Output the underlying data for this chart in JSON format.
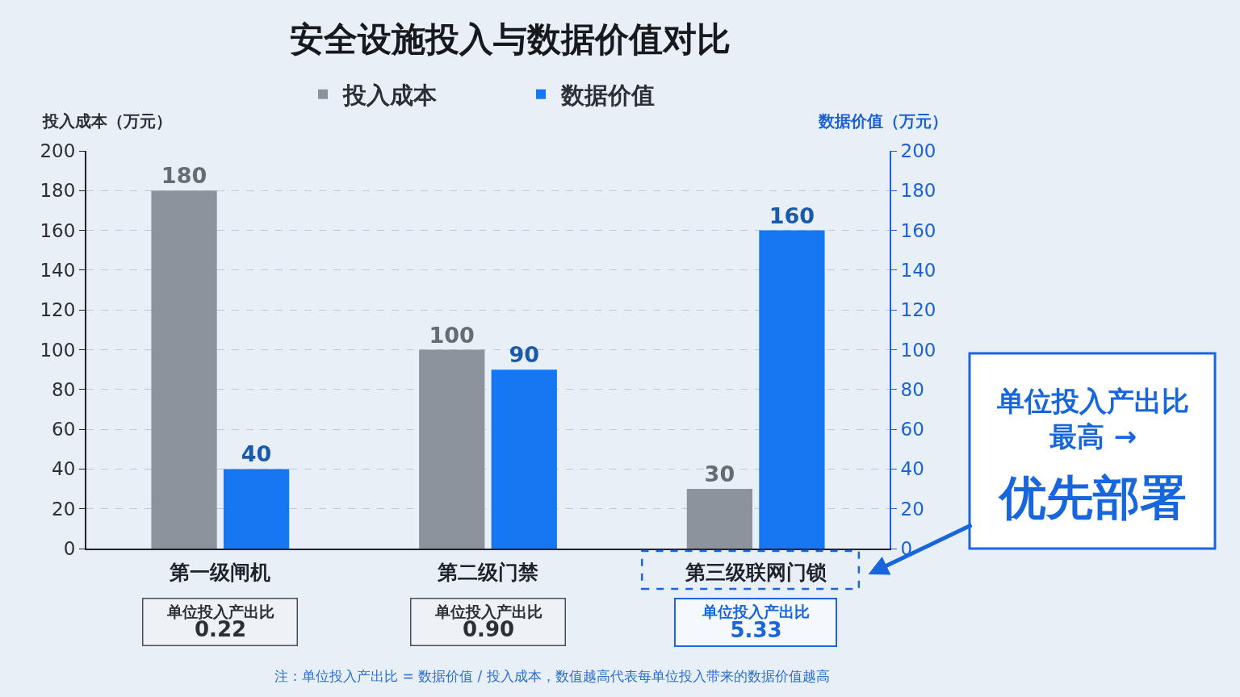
{
  "chart_data": {
    "type": "bar",
    "title": "安全设施投入与数据价值对比",
    "ylabel": "投入成本（万元）",
    "y2label": "数据价值（万元）",
    "categories": [
      "第一级闸机",
      "第二级门禁",
      "第三级联网门锁"
    ],
    "series": [
      {
        "name": "投入成本",
        "color": "#8c939d",
        "values": [
          180,
          100,
          30
        ]
      },
      {
        "name": "数据价值",
        "color": "#1677f2",
        "values": [
          40,
          90,
          160
        ],
        "axis": "y2"
      }
    ],
    "ylim": [
      0,
      200
    ],
    "yticks": [
      0,
      20,
      40,
      60,
      80,
      100,
      120,
      140,
      160,
      180,
      200
    ],
    "y2lim": [
      0,
      200
    ],
    "y2ticks": [
      0,
      20,
      40,
      60,
      80,
      100,
      120,
      140,
      160,
      180,
      200
    ],
    "grid": "y",
    "legend": "top",
    "data_labels": true,
    "annotations": [
      "单位投入产出比\n0.22",
      "单位投入产出比\n0.90",
      "单位投入产出比\n5.33",
      "单位投入产出比最高 →",
      "优先部署",
      "注：单位投入产出比 = 数据价值 / 投入成本，数值越高代表每单位投入带来的数据价值越高"
    ]
  }
}
